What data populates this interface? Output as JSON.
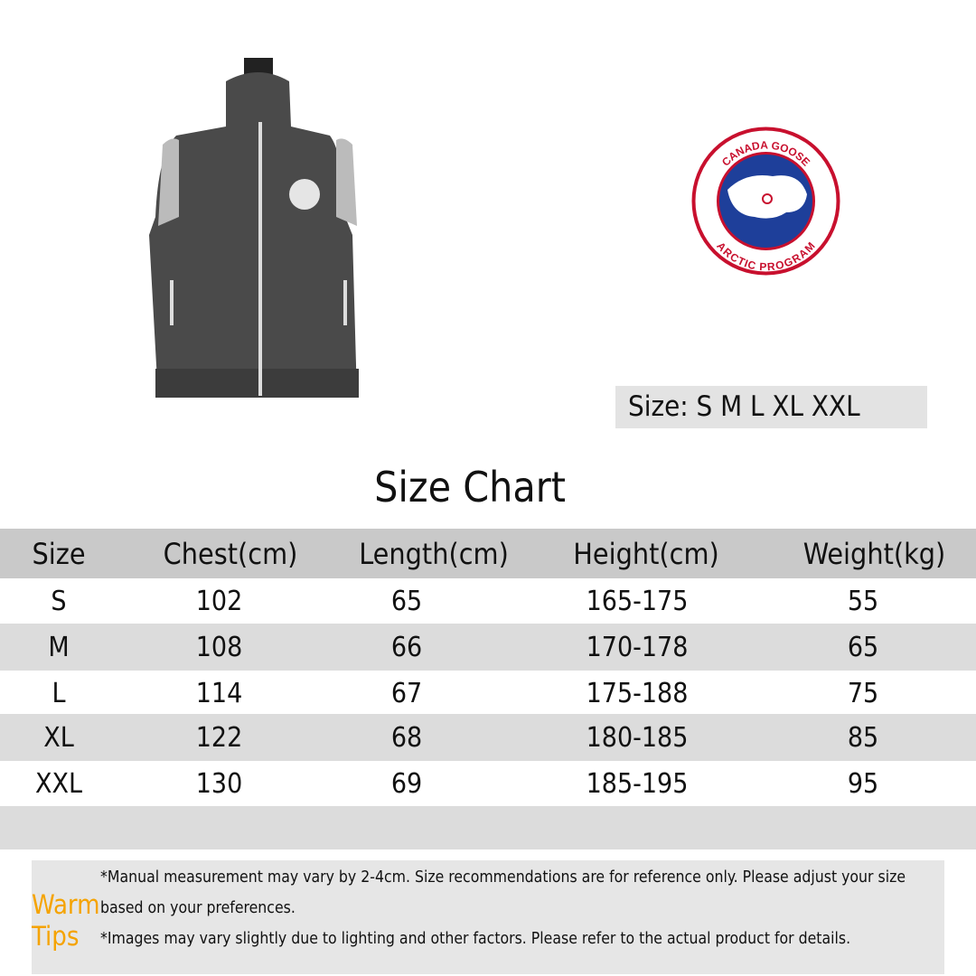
{
  "brand_logo": {
    "top_text": "CANADA GOOSE",
    "bottom_text": "ARCTIC PROGRAM",
    "colors": {
      "red": "#c8102e",
      "blue": "#1e3f9a"
    }
  },
  "size_options": {
    "label": "Size:",
    "values": "S M L XL XXL"
  },
  "chart_title": "Size Chart",
  "table": {
    "headers": [
      "Size",
      "Chest(cm)",
      "Length(cm)",
      "Height(cm)",
      "Weight(kg)"
    ],
    "rows": [
      [
        "S",
        "102",
        "65",
        "165-175",
        "55"
      ],
      [
        "M",
        "108",
        "66",
        "170-178",
        "65"
      ],
      [
        "L",
        "114",
        "67",
        "175-188",
        "75"
      ],
      [
        "XL",
        "122",
        "68",
        "180-185",
        "85"
      ],
      [
        "XXL",
        "130",
        "69",
        "185-195",
        "95"
      ]
    ]
  },
  "tips": {
    "label_line1": "Warm",
    "label_line2": "Tips",
    "line1": "*Manual measurement may vary by 2-4cm. Size recommendations are for reference only. Please adjust your size based on your preferences.",
    "line2": "*Images may vary slightly due to lighting and other factors. Please refer to the actual product for details.",
    "label_color": "#f5a300"
  }
}
